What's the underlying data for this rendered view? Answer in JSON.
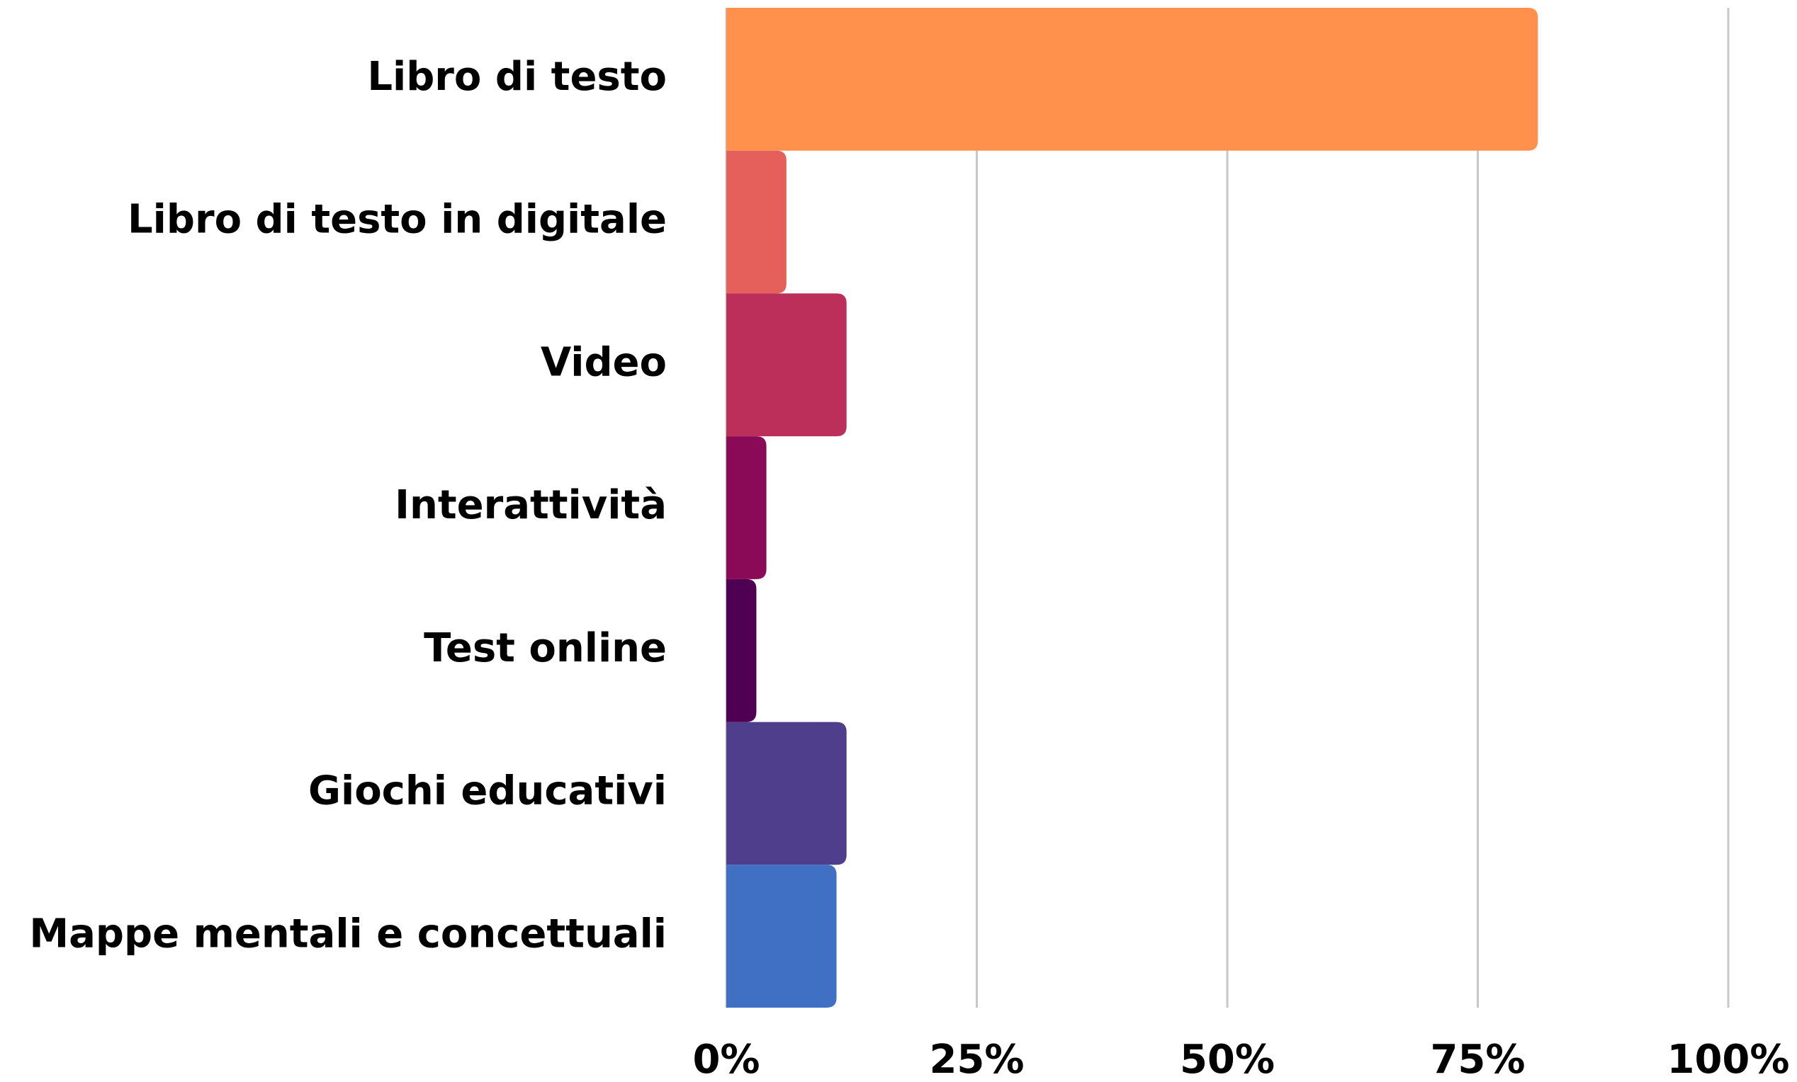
{
  "chart_data": {
    "type": "barh",
    "categories": [
      "Libro di testo",
      "Libro di testo in digitale",
      "Video",
      "Interattività",
      "Test online",
      "Giochi educativi",
      "Mappe mentali e concettuali"
    ],
    "values": [
      81,
      6,
      12,
      4,
      3,
      12,
      11
    ],
    "colors": [
      "#ff914d",
      "#e5605a",
      "#bb2f5a",
      "#8a0a57",
      "#4f0052",
      "#4f3e8c",
      "#4070c4"
    ],
    "xlim": [
      0,
      100
    ],
    "xticks": [
      {
        "value": 0,
        "label": "0%"
      },
      {
        "value": 25,
        "label": "25%"
      },
      {
        "value": 50,
        "label": "50%"
      },
      {
        "value": 75,
        "label": "75%"
      },
      {
        "value": 100,
        "label": "100%"
      }
    ],
    "grid": true
  }
}
